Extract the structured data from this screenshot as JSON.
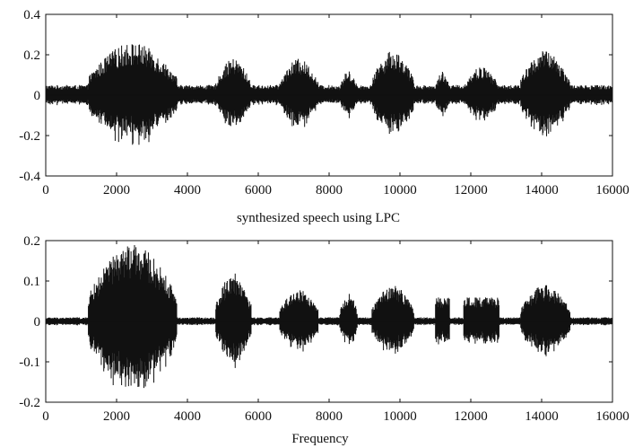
{
  "chart_data": [
    {
      "type": "line",
      "title": "",
      "xlabel": "",
      "ylabel": "",
      "xlim": [
        0,
        16000
      ],
      "ylim": [
        -0.4,
        0.4
      ],
      "xticks": [
        0,
        2000,
        4000,
        6000,
        8000,
        10000,
        12000,
        14000,
        16000
      ],
      "yticks": [
        0.4,
        0.2,
        0,
        -0.2,
        -0.4
      ],
      "xtick_labels": [
        "0",
        "2000",
        "4000",
        "6000",
        "8000",
        "10000",
        "12000",
        "14000",
        "16000"
      ],
      "ytick_labels": [
        "0.4",
        "0.2",
        "0",
        "-0.2",
        "-0.4"
      ],
      "grid": false,
      "color": "#111111",
      "segments": [
        {
          "x": [
            0,
            1200
          ],
          "peak": 0.05
        },
        {
          "x": [
            1200,
            3700
          ],
          "peak": 0.26
        },
        {
          "x": [
            3700,
            4800
          ],
          "peak": 0.05
        },
        {
          "x": [
            4800,
            5800
          ],
          "peak": 0.18
        },
        {
          "x": [
            5800,
            6600
          ],
          "peak": 0.05
        },
        {
          "x": [
            6600,
            7700
          ],
          "peak": 0.18
        },
        {
          "x": [
            7700,
            8300
          ],
          "peak": 0.05
        },
        {
          "x": [
            8300,
            8800
          ],
          "peak": 0.12
        },
        {
          "x": [
            8800,
            9200
          ],
          "peak": 0.05
        },
        {
          "x": [
            9200,
            10400
          ],
          "peak": 0.22
        },
        {
          "x": [
            10400,
            11000
          ],
          "peak": 0.05
        },
        {
          "x": [
            11000,
            11400
          ],
          "peak": 0.12
        },
        {
          "x": [
            11400,
            11800
          ],
          "peak": 0.05
        },
        {
          "x": [
            11800,
            12800
          ],
          "peak": 0.14
        },
        {
          "x": [
            12800,
            13400
          ],
          "peak": 0.05
        },
        {
          "x": [
            13400,
            14800
          ],
          "peak": 0.22
        },
        {
          "x": [
            14800,
            16000
          ],
          "peak": 0.05
        }
      ]
    },
    {
      "type": "line",
      "title": "synthesized speech using LPC",
      "xlabel": "Frequency",
      "ylabel": "",
      "xlim": [
        0,
        16000
      ],
      "ylim": [
        -0.2,
        0.2
      ],
      "xticks": [
        0,
        2000,
        4000,
        6000,
        8000,
        10000,
        12000,
        14000,
        16000
      ],
      "yticks": [
        0.2,
        0.1,
        0,
        -0.1,
        -0.2
      ],
      "xtick_labels": [
        "0",
        "2000",
        "4000",
        "6000",
        "8000",
        "10000",
        "12000",
        "14000",
        "16000"
      ],
      "ytick_labels": [
        "0.2",
        "0.1",
        "0",
        "-0.1",
        "-0.2"
      ],
      "grid": false,
      "color": "#111111",
      "segments": [
        {
          "x": [
            0,
            1200
          ],
          "peak": 0.01
        },
        {
          "x": [
            1200,
            3700
          ],
          "peak": 0.19
        },
        {
          "x": [
            3700,
            4800
          ],
          "peak": 0.01
        },
        {
          "x": [
            4800,
            5800
          ],
          "peak": 0.12
        },
        {
          "x": [
            5800,
            6600
          ],
          "peak": 0.01
        },
        {
          "x": [
            6600,
            7700
          ],
          "peak": 0.08
        },
        {
          "x": [
            7700,
            8300
          ],
          "peak": 0.01
        },
        {
          "x": [
            8300,
            8800
          ],
          "peak": 0.07
        },
        {
          "x": [
            8800,
            9200
          ],
          "peak": 0.01
        },
        {
          "x": [
            9200,
            10400
          ],
          "peak": 0.09
        },
        {
          "x": [
            10400,
            11000
          ],
          "peak": 0.01
        },
        {
          "x": [
            11000,
            11400
          ],
          "peak": 0.06
        },
        {
          "x": [
            11400,
            11800
          ],
          "peak": 0.01
        },
        {
          "x": [
            11800,
            12800
          ],
          "peak": 0.06
        },
        {
          "x": [
            12800,
            13400
          ],
          "peak": 0.01
        },
        {
          "x": [
            13400,
            14800
          ],
          "peak": 0.09
        },
        {
          "x": [
            14800,
            16000
          ],
          "peak": 0.01
        }
      ]
    }
  ]
}
